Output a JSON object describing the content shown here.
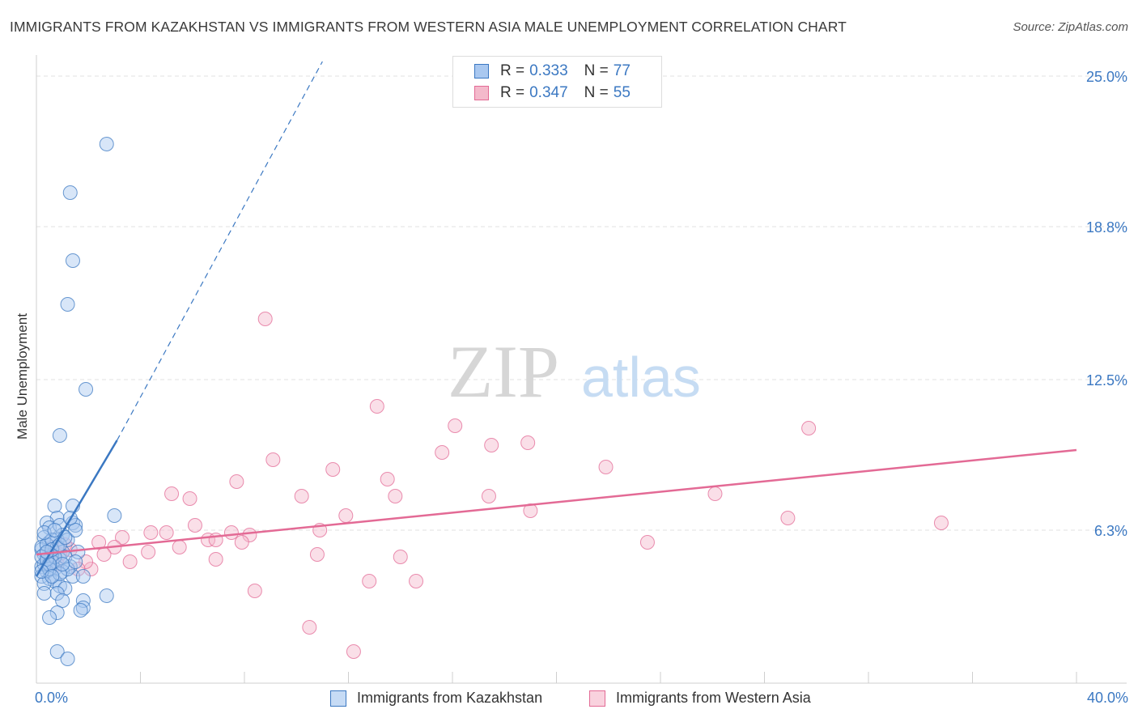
{
  "title": "IMMIGRANTS FROM KAZAKHSTAN VS IMMIGRANTS FROM WESTERN ASIA MALE UNEMPLOYMENT CORRELATION CHART",
  "source": "Source: ZipAtlas.com",
  "watermark": {
    "zip": "ZIP",
    "atlas": "atlas"
  },
  "colors": {
    "blue": "#3b78c2",
    "blue_fill": "#a9c8f0",
    "pink": "#e36a95",
    "pink_fill": "#f4b9cb"
  },
  "legend_top": {
    "rows": [
      {
        "r_label": "R =",
        "r_value": "0.333",
        "n_label": "N =",
        "n_value": "77"
      },
      {
        "r_label": "R =",
        "r_value": "0.347",
        "n_label": "N =",
        "n_value": "55"
      }
    ]
  },
  "chart_data": {
    "type": "scatter",
    "title": "IMMIGRANTS FROM KAZAKHSTAN VS IMMIGRANTS FROM WESTERN ASIA MALE UNEMPLOYMENT CORRELATION CHART",
    "xlabel": "",
    "ylabel": "Male Unemployment",
    "xlim": [
      0,
      40
    ],
    "ylim": [
      0,
      25.6
    ],
    "x_tick_labels": [
      "0.0%",
      "40.0%"
    ],
    "y_ticks": [
      6.3,
      12.5,
      18.8,
      25.0
    ],
    "y_tick_labels": [
      "6.3%",
      "12.5%",
      "18.8%",
      "25.0%"
    ],
    "grid": true,
    "legend_position": "bottom",
    "series": [
      {
        "name": "Immigrants from Kazakhstan",
        "color": "#3b78c2",
        "R": 0.333,
        "N": 77,
        "trend": {
          "x0": 0.0,
          "y0": 4.4,
          "x1": 3.1,
          "y1": 10.0,
          "dashed_to": [
            11.0,
            25.6
          ]
        },
        "points": [
          [
            2.7,
            22.2
          ],
          [
            1.3,
            20.2
          ],
          [
            1.4,
            17.4
          ],
          [
            1.2,
            15.6
          ],
          [
            1.9,
            12.1
          ],
          [
            0.9,
            10.2
          ],
          [
            3.0,
            6.9
          ],
          [
            0.7,
            7.3
          ],
          [
            1.4,
            7.3
          ],
          [
            0.8,
            6.8
          ],
          [
            1.4,
            6.6
          ],
          [
            0.4,
            6.6
          ],
          [
            0.5,
            6.4
          ],
          [
            1.5,
            6.5
          ],
          [
            0.9,
            6.5
          ],
          [
            1.0,
            6.1
          ],
          [
            0.3,
            6.0
          ],
          [
            0.5,
            5.8
          ],
          [
            0.8,
            5.9
          ],
          [
            1.2,
            5.9
          ],
          [
            1.5,
            6.3
          ],
          [
            0.2,
            5.5
          ],
          [
            0.6,
            5.3
          ],
          [
            0.3,
            5.3
          ],
          [
            1.0,
            5.4
          ],
          [
            1.6,
            5.4
          ],
          [
            0.9,
            5.1
          ],
          [
            0.4,
            5.0
          ],
          [
            0.6,
            5.0
          ],
          [
            0.2,
            4.8
          ],
          [
            1.3,
            4.8
          ],
          [
            0.7,
            4.7
          ],
          [
            1.0,
            4.6
          ],
          [
            0.4,
            4.6
          ],
          [
            0.2,
            4.4
          ],
          [
            0.5,
            4.3
          ],
          [
            0.7,
            4.2
          ],
          [
            1.4,
            4.4
          ],
          [
            0.3,
            4.1
          ],
          [
            0.9,
            4.0
          ],
          [
            1.1,
            3.9
          ],
          [
            0.3,
            3.7
          ],
          [
            1.8,
            4.4
          ],
          [
            0.8,
            3.7
          ],
          [
            1.0,
            3.4
          ],
          [
            1.8,
            3.4
          ],
          [
            2.7,
            3.6
          ],
          [
            1.8,
            3.1
          ],
          [
            0.8,
            2.9
          ],
          [
            1.7,
            3.0
          ],
          [
            0.5,
            2.7
          ],
          [
            0.8,
            1.3
          ],
          [
            1.2,
            1.0
          ],
          [
            0.2,
            5.6
          ],
          [
            0.4,
            5.7
          ],
          [
            0.6,
            5.9
          ],
          [
            0.8,
            5.6
          ],
          [
            1.1,
            5.2
          ],
          [
            0.3,
            4.9
          ],
          [
            0.5,
            4.7
          ],
          [
            0.7,
            5.2
          ],
          [
            1.2,
            4.7
          ],
          [
            0.9,
            4.5
          ],
          [
            0.2,
            5.2
          ],
          [
            0.4,
            5.1
          ],
          [
            0.6,
            5.5
          ],
          [
            1.0,
            4.9
          ],
          [
            0.3,
            6.2
          ],
          [
            0.7,
            6.3
          ],
          [
            1.3,
            6.8
          ],
          [
            0.5,
            4.9
          ],
          [
            0.2,
            4.6
          ],
          [
            0.9,
            5.7
          ],
          [
            1.1,
            6.0
          ],
          [
            0.4,
            5.4
          ],
          [
            0.6,
            4.4
          ],
          [
            1.5,
            5.0
          ]
        ]
      },
      {
        "name": "Immigrants from Western Asia",
        "color": "#e36a95",
        "R": 0.347,
        "N": 55,
        "trend": {
          "x0": 0.0,
          "y0": 5.3,
          "x1": 40.0,
          "y1": 9.6
        },
        "points": [
          [
            8.8,
            15.0
          ],
          [
            13.1,
            11.4
          ],
          [
            16.1,
            10.6
          ],
          [
            29.7,
            10.5
          ],
          [
            15.6,
            9.5
          ],
          [
            17.5,
            9.8
          ],
          [
            18.9,
            9.9
          ],
          [
            9.1,
            9.2
          ],
          [
            11.4,
            8.8
          ],
          [
            13.5,
            8.4
          ],
          [
            21.9,
            8.9
          ],
          [
            7.7,
            8.3
          ],
          [
            5.2,
            7.8
          ],
          [
            5.9,
            7.6
          ],
          [
            10.2,
            7.7
          ],
          [
            13.8,
            7.7
          ],
          [
            17.4,
            7.7
          ],
          [
            26.1,
            7.8
          ],
          [
            19.0,
            7.1
          ],
          [
            11.9,
            6.9
          ],
          [
            28.9,
            6.8
          ],
          [
            34.8,
            6.6
          ],
          [
            6.1,
            6.5
          ],
          [
            10.9,
            6.3
          ],
          [
            4.4,
            6.2
          ],
          [
            5.0,
            6.2
          ],
          [
            7.5,
            6.2
          ],
          [
            8.2,
            6.1
          ],
          [
            3.3,
            6.0
          ],
          [
            6.6,
            5.9
          ],
          [
            6.9,
            5.9
          ],
          [
            7.9,
            5.8
          ],
          [
            2.4,
            5.8
          ],
          [
            3.0,
            5.6
          ],
          [
            23.5,
            5.8
          ],
          [
            5.5,
            5.6
          ],
          [
            4.3,
            5.4
          ],
          [
            2.6,
            5.3
          ],
          [
            10.8,
            5.3
          ],
          [
            14.0,
            5.2
          ],
          [
            3.6,
            5.0
          ],
          [
            6.9,
            5.1
          ],
          [
            2.1,
            4.7
          ],
          [
            1.3,
            5.5
          ],
          [
            1.9,
            5.0
          ],
          [
            0.9,
            5.3
          ],
          [
            1.6,
            4.7
          ],
          [
            0.6,
            5.6
          ],
          [
            1.1,
            5.7
          ],
          [
            0.8,
            4.9
          ],
          [
            8.4,
            3.8
          ],
          [
            12.8,
            4.2
          ],
          [
            14.6,
            4.2
          ],
          [
            10.5,
            2.3
          ],
          [
            12.2,
            1.3
          ]
        ]
      }
    ]
  }
}
